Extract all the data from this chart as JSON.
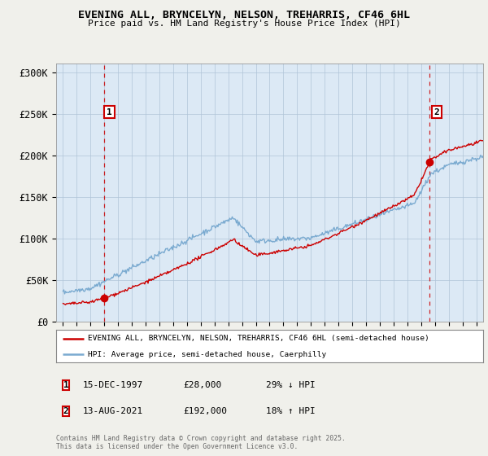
{
  "title": "EVENING ALL, BRYNCELYN, NELSON, TREHARRIS, CF46 6HL",
  "subtitle": "Price paid vs. HM Land Registry's House Price Index (HPI)",
  "ylim": [
    0,
    310000
  ],
  "xlim": [
    1994.5,
    2025.5
  ],
  "ytick_labels": [
    "£0",
    "£50K",
    "£100K",
    "£150K",
    "£200K",
    "£250K",
    "£300K"
  ],
  "ytick_values": [
    0,
    50000,
    100000,
    150000,
    200000,
    250000,
    300000
  ],
  "xtick_values": [
    1995,
    1996,
    1997,
    1998,
    1999,
    2000,
    2001,
    2002,
    2003,
    2004,
    2005,
    2006,
    2007,
    2008,
    2009,
    2010,
    2011,
    2012,
    2013,
    2014,
    2015,
    2016,
    2017,
    2018,
    2019,
    2020,
    2021,
    2022,
    2023,
    2024,
    2025
  ],
  "sale1_date": 1997.96,
  "sale1_price": 28000,
  "sale1_label": "1",
  "sale2_date": 2021.62,
  "sale2_price": 192000,
  "sale2_label": "2",
  "red_line_color": "#cc0000",
  "blue_line_color": "#7aaad0",
  "dashed_line_color": "#cc0000",
  "marker_color": "#cc0000",
  "background_color": "#f0f0eb",
  "plot_bg_color": "#dce9f5",
  "grid_color": "#b0c4d8",
  "legend_line1": "EVENING ALL, BRYNCELYN, NELSON, TREHARRIS, CF46 6HL (semi-detached house)",
  "legend_line2": "HPI: Average price, semi-detached house, Caerphilly",
  "annotation1_label": "1",
  "annotation1_date": "15-DEC-1997",
  "annotation1_price": "£28,000",
  "annotation1_hpi": "29% ↓ HPI",
  "annotation2_label": "2",
  "annotation2_date": "13-AUG-2021",
  "annotation2_price": "£192,000",
  "annotation2_hpi": "18% ↑ HPI",
  "footer": "Contains HM Land Registry data © Crown copyright and database right 2025.\nThis data is licensed under the Open Government Licence v3.0."
}
